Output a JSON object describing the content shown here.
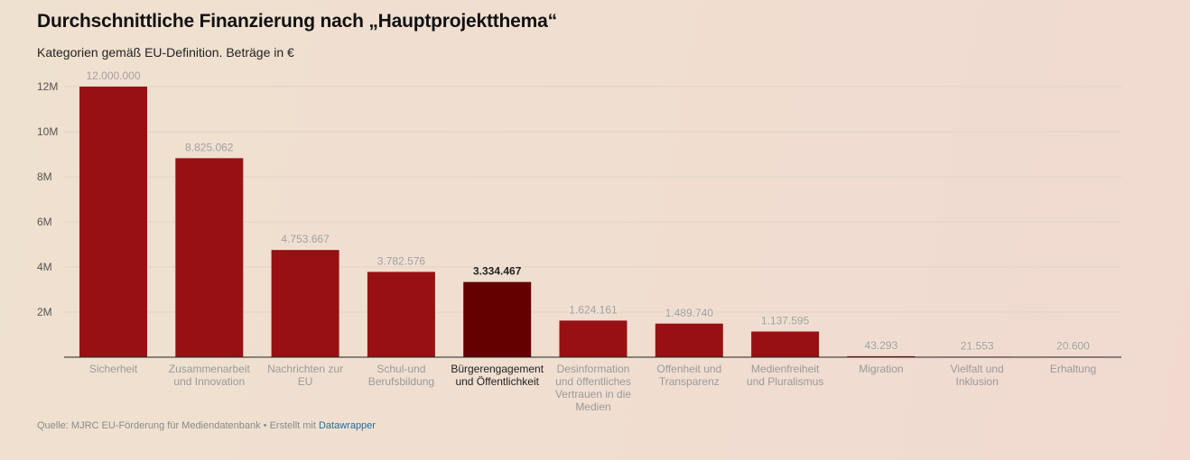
{
  "title": "Durchschnittliche Finanzierung nach „Hauptprojektthema“",
  "subtitle": "Kategorien gemäß EU-Definition. Beträge in €",
  "footer": {
    "source_text": "Quelle: MJRC EU-Förderung für Mediendatenbank • Erstellt mit ",
    "link_text": "Datawrapper"
  },
  "colors": {
    "bar": "#971114",
    "bar_highlight": "#650000",
    "grid": "#e0d3c7",
    "baseline": "#222222"
  },
  "chart_data": {
    "type": "bar",
    "categories": [
      [
        "Sicherheit"
      ],
      [
        "Zusammenarbeit",
        "und Innovation"
      ],
      [
        "Nachrichten zur",
        "EU"
      ],
      [
        "Schul-und",
        "Berufsbildung"
      ],
      [
        "Bürgerengagement",
        "und Öffentlichkeit"
      ],
      [
        "Desinformation",
        "und öffentliches",
        "Vertrauen in die",
        "Medien"
      ],
      [
        "Offenheit und",
        "Transparenz"
      ],
      [
        "Medienfreiheit",
        "und Pluralismus"
      ],
      [
        "Migration"
      ],
      [
        "Vielfalt und",
        "Inklusion"
      ],
      [
        "Erhaltung"
      ]
    ],
    "values": [
      12000000,
      8825062,
      4753667,
      3782576,
      3334467,
      1624161,
      1489740,
      1137595,
      43293,
      21553,
      20600
    ],
    "value_labels": [
      "12.000.000",
      "8.825.062",
      "4.753.667",
      "3.782.576",
      "3.334.467",
      "1.624.161",
      "1.489.740",
      "1.137.595",
      "43.293",
      "21.553",
      "20.600"
    ],
    "highlight_index": 4,
    "ylim": [
      0,
      12000000
    ],
    "yticks": [
      2000000,
      4000000,
      6000000,
      8000000,
      10000000,
      12000000
    ],
    "ytick_labels": [
      "2M",
      "4M",
      "6M",
      "8M",
      "10M",
      "12M"
    ],
    "grid": true,
    "xlabel": "",
    "ylabel": ""
  }
}
